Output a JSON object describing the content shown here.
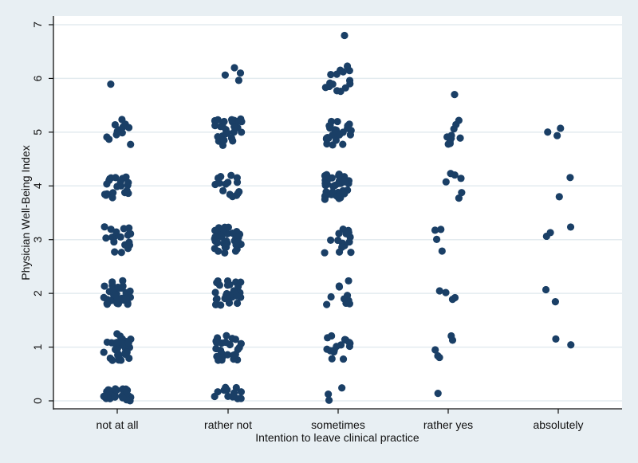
{
  "chart_data": {
    "type": "scatter",
    "title": "",
    "xlabel": "Intention to leave clinical practice",
    "ylabel": "Physician Well-Being Index",
    "categories": [
      "not at all",
      "rather not",
      "sometimes",
      "rather yes",
      "absolutely"
    ],
    "ylim": [
      0,
      7
    ],
    "yticks": [
      "0",
      "1",
      "2",
      "3",
      "4",
      "5",
      "6",
      "7"
    ],
    "grid": true,
    "jitter": true,
    "marker_color": "#1a3f66",
    "counts_by_level": {
      "levels": [
        0,
        1,
        2,
        3,
        4,
        5,
        6
      ],
      "series": [
        {
          "name": "not at all",
          "counts": [
            30,
            30,
            35,
            20,
            20,
            12,
            1
          ]
        },
        {
          "name": "rather not",
          "counts": [
            12,
            25,
            30,
            35,
            15,
            30,
            4
          ]
        },
        {
          "name": "sometimes",
          "counts": [
            3,
            15,
            10,
            15,
            40,
            25,
            15
          ]
        },
        {
          "name": "rather yes",
          "counts": [
            1,
            5,
            4,
            4,
            6,
            10,
            0
          ]
        },
        {
          "name": "absolutely",
          "counts": [
            0,
            2,
            2,
            3,
            2,
            3,
            0
          ]
        }
      ]
    },
    "extra_points": [
      {
        "category": "sometimes",
        "y": 6.8
      },
      {
        "category": "rather yes",
        "y": 5.7
      }
    ]
  }
}
